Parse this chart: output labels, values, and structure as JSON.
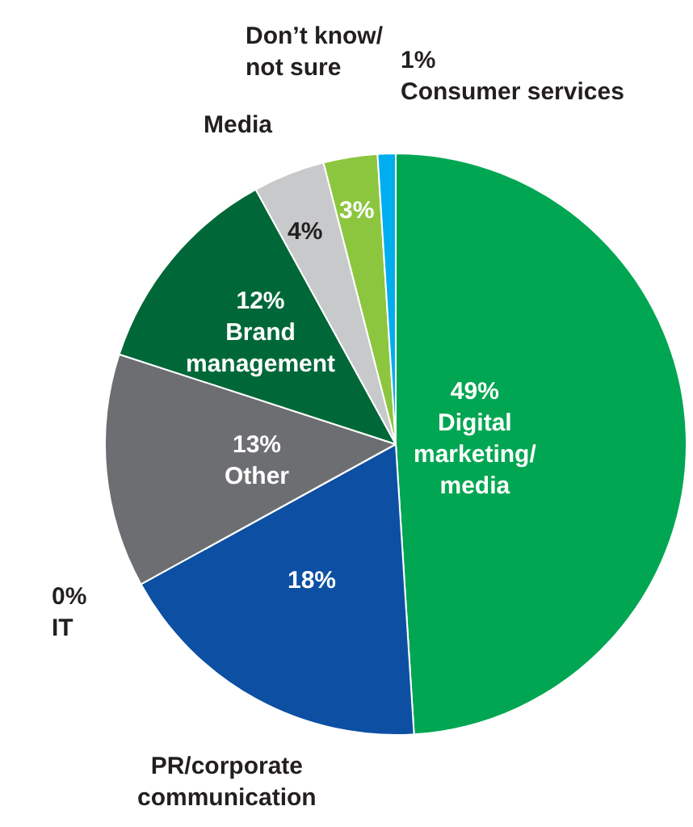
{
  "chart_data": {
    "type": "pie",
    "categories": [
      "Digital marketing/media",
      "PR/corporate communication",
      "IT",
      "Other",
      "Brand management",
      "Media",
      "Don’t know/not sure",
      "Consumer services"
    ],
    "values": [
      49,
      18,
      0,
      13,
      12,
      4,
      3,
      1
    ],
    "colors": [
      "#00a651",
      "#0d4fa3",
      "#1b3f8f",
      "#6d6e71",
      "#006838",
      "#c8c9cb",
      "#8cc63f",
      "#00aeef"
    ],
    "value_labels": [
      "49%",
      "18%",
      "0%",
      "13%",
      "12%",
      "4%",
      "3%",
      "1%"
    ],
    "legend": false
  }
}
